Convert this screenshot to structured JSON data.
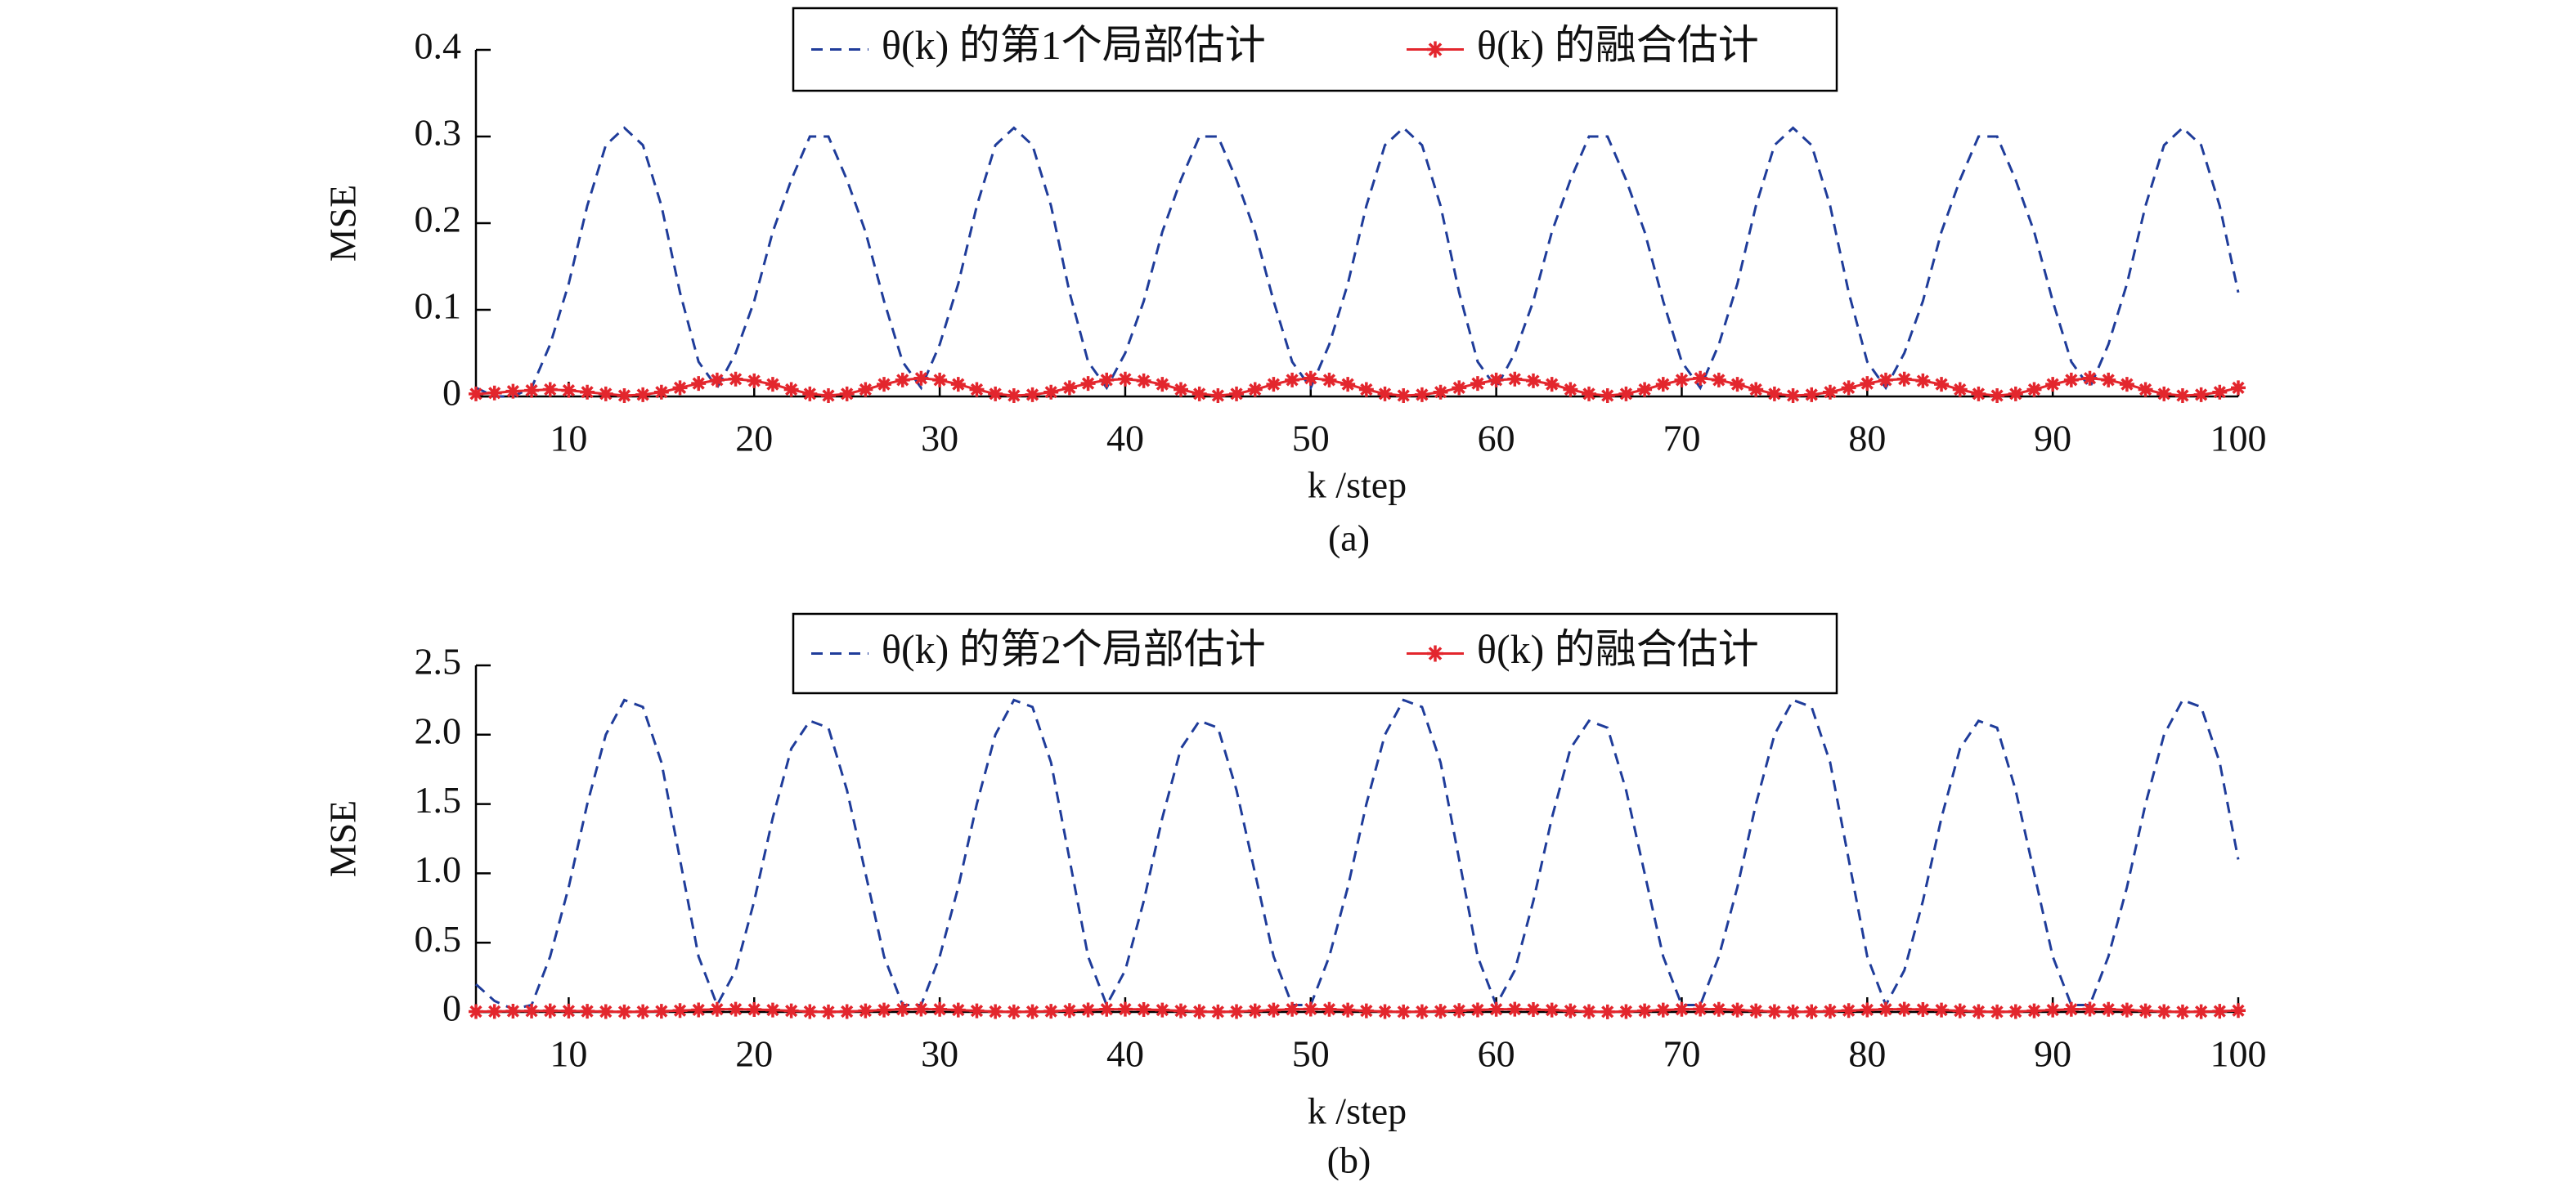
{
  "chart_data": [
    {
      "type": "line",
      "caption": "(a)",
      "xlabel": "k /step",
      "ylabel": "MSE",
      "x": [
        5,
        6,
        7,
        8,
        9,
        10,
        11,
        12,
        13,
        14,
        15,
        16,
        17,
        18,
        19,
        20,
        21,
        22,
        23,
        24,
        25,
        26,
        27,
        28,
        29,
        30,
        31,
        32,
        33,
        34,
        35,
        36,
        37,
        38,
        39,
        40,
        41,
        42,
        43,
        44,
        45,
        46,
        47,
        48,
        49,
        50,
        51,
        52,
        53,
        54,
        55,
        56,
        57,
        58,
        59,
        60,
        61,
        62,
        63,
        64,
        65,
        66,
        67,
        68,
        69,
        70,
        71,
        72,
        73,
        74,
        75,
        76,
        77,
        78,
        79,
        80,
        81,
        82,
        83,
        84,
        85,
        86,
        87,
        88,
        89,
        90,
        91,
        92,
        93,
        94,
        95,
        96,
        97,
        98,
        99,
        100
      ],
      "xlim": [
        5,
        100
      ],
      "xticks": [
        10,
        20,
        30,
        40,
        50,
        60,
        70,
        80,
        90,
        100
      ],
      "ylim": [
        0,
        0.4
      ],
      "yticks": [
        0,
        0.1,
        0.2,
        0.3,
        0.4
      ],
      "series": [
        {
          "name": "θ(k) 的第1个局部估计",
          "color": "#1f3c9a",
          "style": "dashed",
          "values": [
            0.01,
            0,
            0,
            0.01,
            0.06,
            0.13,
            0.22,
            0.29,
            0.31,
            0.29,
            0.22,
            0.12,
            0.04,
            0.01,
            0.05,
            0.11,
            0.19,
            0.25,
            0.3,
            0.3,
            0.25,
            0.19,
            0.11,
            0.04,
            0.01,
            0.06,
            0.13,
            0.22,
            0.29,
            0.31,
            0.29,
            0.22,
            0.12,
            0.04,
            0.01,
            0.05,
            0.11,
            0.19,
            0.25,
            0.3,
            0.3,
            0.25,
            0.19,
            0.11,
            0.04,
            0.01,
            0.06,
            0.13,
            0.22,
            0.29,
            0.31,
            0.29,
            0.22,
            0.12,
            0.04,
            0.01,
            0.05,
            0.11,
            0.19,
            0.25,
            0.3,
            0.3,
            0.25,
            0.19,
            0.11,
            0.04,
            0.01,
            0.06,
            0.13,
            0.22,
            0.29,
            0.31,
            0.29,
            0.22,
            0.12,
            0.04,
            0.01,
            0.05,
            0.11,
            0.19,
            0.25,
            0.3,
            0.3,
            0.25,
            0.19,
            0.11,
            0.04,
            0.01,
            0.06,
            0.13,
            0.22,
            0.29,
            0.31,
            0.29,
            0.22,
            0.12
          ]
        },
        {
          "name": "θ(k) 的融合估计",
          "color": "#e3262d",
          "style": "solid",
          "marker": "star",
          "values": [
            0.003,
            0.004,
            0.006,
            0.007,
            0.008,
            0.007,
            0.005,
            0.003,
            0.001,
            0.002,
            0.005,
            0.01,
            0.015,
            0.019,
            0.02,
            0.018,
            0.014,
            0.008,
            0.003,
            0.001,
            0.003,
            0.008,
            0.014,
            0.019,
            0.021,
            0.019,
            0.014,
            0.008,
            0.003,
            0.001,
            0.002,
            0.005,
            0.01,
            0.015,
            0.019,
            0.02,
            0.018,
            0.014,
            0.008,
            0.003,
            0.001,
            0.003,
            0.008,
            0.014,
            0.019,
            0.021,
            0.019,
            0.014,
            0.008,
            0.003,
            0.001,
            0.002,
            0.005,
            0.01,
            0.015,
            0.019,
            0.02,
            0.018,
            0.014,
            0.008,
            0.003,
            0.001,
            0.003,
            0.008,
            0.014,
            0.019,
            0.021,
            0.019,
            0.014,
            0.008,
            0.003,
            0.001,
            0.002,
            0.005,
            0.01,
            0.015,
            0.019,
            0.02,
            0.018,
            0.014,
            0.008,
            0.003,
            0.001,
            0.003,
            0.008,
            0.014,
            0.019,
            0.021,
            0.019,
            0.014,
            0.008,
            0.003,
            0.001,
            0.002,
            0.005,
            0.01
          ]
        }
      ]
    },
    {
      "type": "line",
      "caption": "(b)",
      "xlabel": "k /step",
      "ylabel": "MSE",
      "x": [
        5,
        6,
        7,
        8,
        9,
        10,
        11,
        12,
        13,
        14,
        15,
        16,
        17,
        18,
        19,
        20,
        21,
        22,
        23,
        24,
        25,
        26,
        27,
        28,
        29,
        30,
        31,
        32,
        33,
        34,
        35,
        36,
        37,
        38,
        39,
        40,
        41,
        42,
        43,
        44,
        45,
        46,
        47,
        48,
        49,
        50,
        51,
        52,
        53,
        54,
        55,
        56,
        57,
        58,
        59,
        60,
        61,
        62,
        63,
        64,
        65,
        66,
        67,
        68,
        69,
        70,
        71,
        72,
        73,
        74,
        75,
        76,
        77,
        78,
        79,
        80,
        81,
        82,
        83,
        84,
        85,
        86,
        87,
        88,
        89,
        90,
        91,
        92,
        93,
        94,
        95,
        96,
        97,
        98,
        99,
        100
      ],
      "xlim": [
        5,
        100
      ],
      "xticks": [
        10,
        20,
        30,
        40,
        50,
        60,
        70,
        80,
        90,
        100
      ],
      "ylim": [
        0,
        2.5
      ],
      "yticks": [
        0,
        0.5,
        {
          "value": 1,
          "label": "1.0"
        },
        1.5,
        {
          "value": 2,
          "label": "2.0"
        },
        2.5
      ],
      "series": [
        {
          "name": "θ(k) 的第2个局部估计",
          "color": "#1f3c9a",
          "style": "dashed",
          "values": [
            0.2,
            0.08,
            0.02,
            0.05,
            0.4,
            0.9,
            1.5,
            2,
            2.25,
            2.2,
            1.8,
            1.1,
            0.4,
            0.05,
            0.3,
            0.8,
            1.4,
            1.9,
            2.1,
            2.05,
            1.6,
            1,
            0.4,
            0.05,
            0.05,
            0.4,
            0.9,
            1.5,
            2,
            2.25,
            2.2,
            1.8,
            1.1,
            0.4,
            0.05,
            0.3,
            0.8,
            1.4,
            1.9,
            2.1,
            2.05,
            1.6,
            1,
            0.4,
            0.05,
            0.05,
            0.4,
            0.9,
            1.5,
            2,
            2.25,
            2.2,
            1.8,
            1.1,
            0.4,
            0.05,
            0.3,
            0.8,
            1.4,
            1.9,
            2.1,
            2.05,
            1.6,
            1,
            0.4,
            0.05,
            0.05,
            0.4,
            0.9,
            1.5,
            2,
            2.25,
            2.2,
            1.8,
            1.1,
            0.4,
            0.05,
            0.3,
            0.8,
            1.4,
            1.9,
            2.1,
            2.05,
            1.6,
            1,
            0.4,
            0.05,
            0.05,
            0.4,
            0.9,
            1.5,
            2,
            2.25,
            2.2,
            1.8,
            1.1
          ]
        },
        {
          "name": "θ(k) 的融合估计",
          "color": "#e3262d",
          "style": "solid",
          "marker": "star",
          "values": [
            0.003,
            0.004,
            0.006,
            0.007,
            0.008,
            0.007,
            0.005,
            0.003,
            0.001,
            0.002,
            0.005,
            0.01,
            0.015,
            0.019,
            0.02,
            0.018,
            0.014,
            0.008,
            0.003,
            0.001,
            0.003,
            0.008,
            0.014,
            0.019,
            0.021,
            0.019,
            0.014,
            0.008,
            0.003,
            0.001,
            0.002,
            0.005,
            0.01,
            0.015,
            0.019,
            0.02,
            0.018,
            0.014,
            0.008,
            0.003,
            0.001,
            0.003,
            0.008,
            0.014,
            0.019,
            0.021,
            0.019,
            0.014,
            0.008,
            0.003,
            0.001,
            0.002,
            0.005,
            0.01,
            0.015,
            0.019,
            0.02,
            0.018,
            0.014,
            0.008,
            0.003,
            0.001,
            0.003,
            0.008,
            0.014,
            0.019,
            0.021,
            0.019,
            0.014,
            0.008,
            0.003,
            0.001,
            0.002,
            0.005,
            0.01,
            0.015,
            0.019,
            0.02,
            0.018,
            0.014,
            0.008,
            0.003,
            0.001,
            0.003,
            0.008,
            0.014,
            0.019,
            0.021,
            0.019,
            0.014,
            0.008,
            0.003,
            0.001,
            0.002,
            0.005,
            0.01
          ]
        }
      ]
    }
  ]
}
